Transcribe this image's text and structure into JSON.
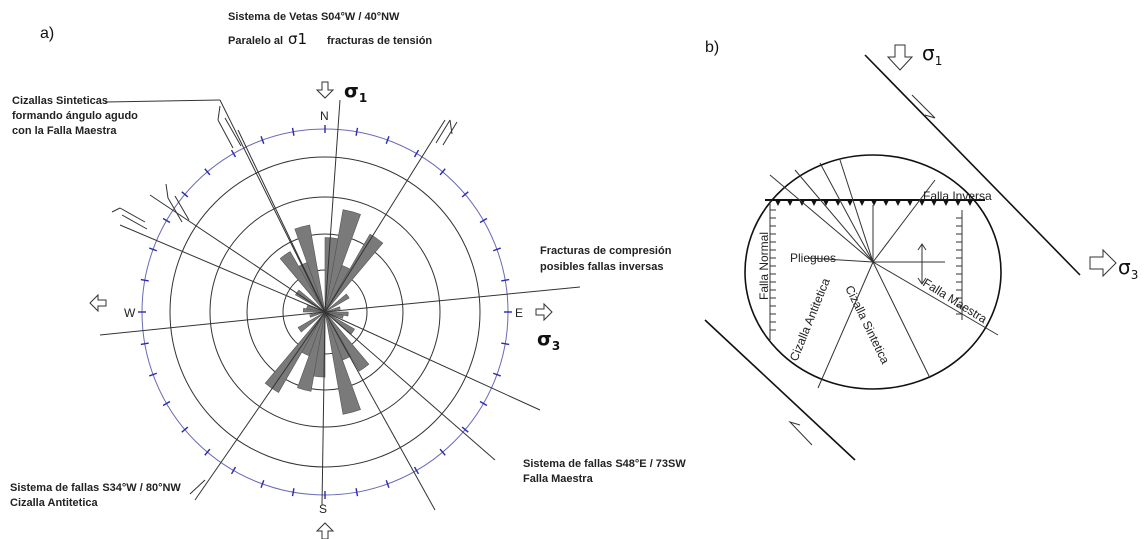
{
  "panel_a": {
    "label": "a)",
    "title_line1": "Sistema de Vetas S04°W / 40°NW",
    "title_line2_a": "Paralelo al",
    "title_line2_sigma": "σ1",
    "title_line2_b": "fracturas de tensión",
    "sigma1_label": "σ",
    "sigma1_sub": "1",
    "sigma3_label": "σ",
    "sigma3_sub": "3",
    "cardinals": {
      "n": "N",
      "s": "S",
      "e": "E",
      "w": "W"
    },
    "annotations": {
      "cizallas_sinteticas": [
        "Cizallas Sinteticas",
        "formando ángulo agudo",
        "con la Falla Maestra"
      ],
      "fracturas_compresion": [
        "Fracturas de compresión",
        "posibles fallas inversas"
      ],
      "sistema_antitetica": [
        "Sistema de fallas S34°W / 80°NW",
        "Cizalla Antitetica"
      ],
      "sistema_maestra": [
        "Sistema de fallas S48°E / 73SW",
        "Falla Maestra"
      ]
    },
    "rose_bins": [
      {
        "azimuth": 15,
        "length": 0.67
      },
      {
        "azimuth": 195,
        "length": 0.52
      },
      {
        "azimuth": 165,
        "length": 0.67
      },
      {
        "azimuth": 345,
        "length": 0.57
      },
      {
        "azimuth": 145,
        "length": 0.44
      },
      {
        "azimuth": 325,
        "length": 0.45
      },
      {
        "azimuth": 35,
        "length": 0.58
      },
      {
        "azimuth": 215,
        "length": 0.6
      },
      {
        "azimuth": 5,
        "length": 0.48
      },
      {
        "azimuth": 185,
        "length": 0.42
      },
      {
        "azimuth": 25,
        "length": 0.32
      },
      {
        "azimuth": 205,
        "length": 0.3
      },
      {
        "azimuth": 335,
        "length": 0.34
      },
      {
        "azimuth": 155,
        "length": 0.33
      },
      {
        "azimuth": 55,
        "length": 0.18
      },
      {
        "azimuth": 235,
        "length": 0.2
      },
      {
        "azimuth": 305,
        "length": 0.22
      },
      {
        "azimuth": 125,
        "length": 0.22
      },
      {
        "azimuth": 95,
        "length": 0.15
      },
      {
        "azimuth": 275,
        "length": 0.14
      },
      {
        "azimuth": 75,
        "length": 0.1
      },
      {
        "azimuth": 255,
        "length": 0.1
      },
      {
        "azimuth": 285,
        "length": 0.12
      },
      {
        "azimuth": 105,
        "length": 0.12
      }
    ]
  },
  "panel_b": {
    "label": "b)",
    "sigma1_label": "σ",
    "sigma1_sub": "1",
    "sigma3_label": "σ",
    "sigma3_sub": "3",
    "labels": {
      "falla_inversa": "Falla Inversa",
      "falla_normal": "Falla Normal",
      "pliegues": "Pliegues",
      "cizalla_antitetica": "Cizalla Antitetica",
      "cizalla_sintetica": "Cizalla Sintetica",
      "falla_maestra": "Falla Maestra"
    }
  }
}
